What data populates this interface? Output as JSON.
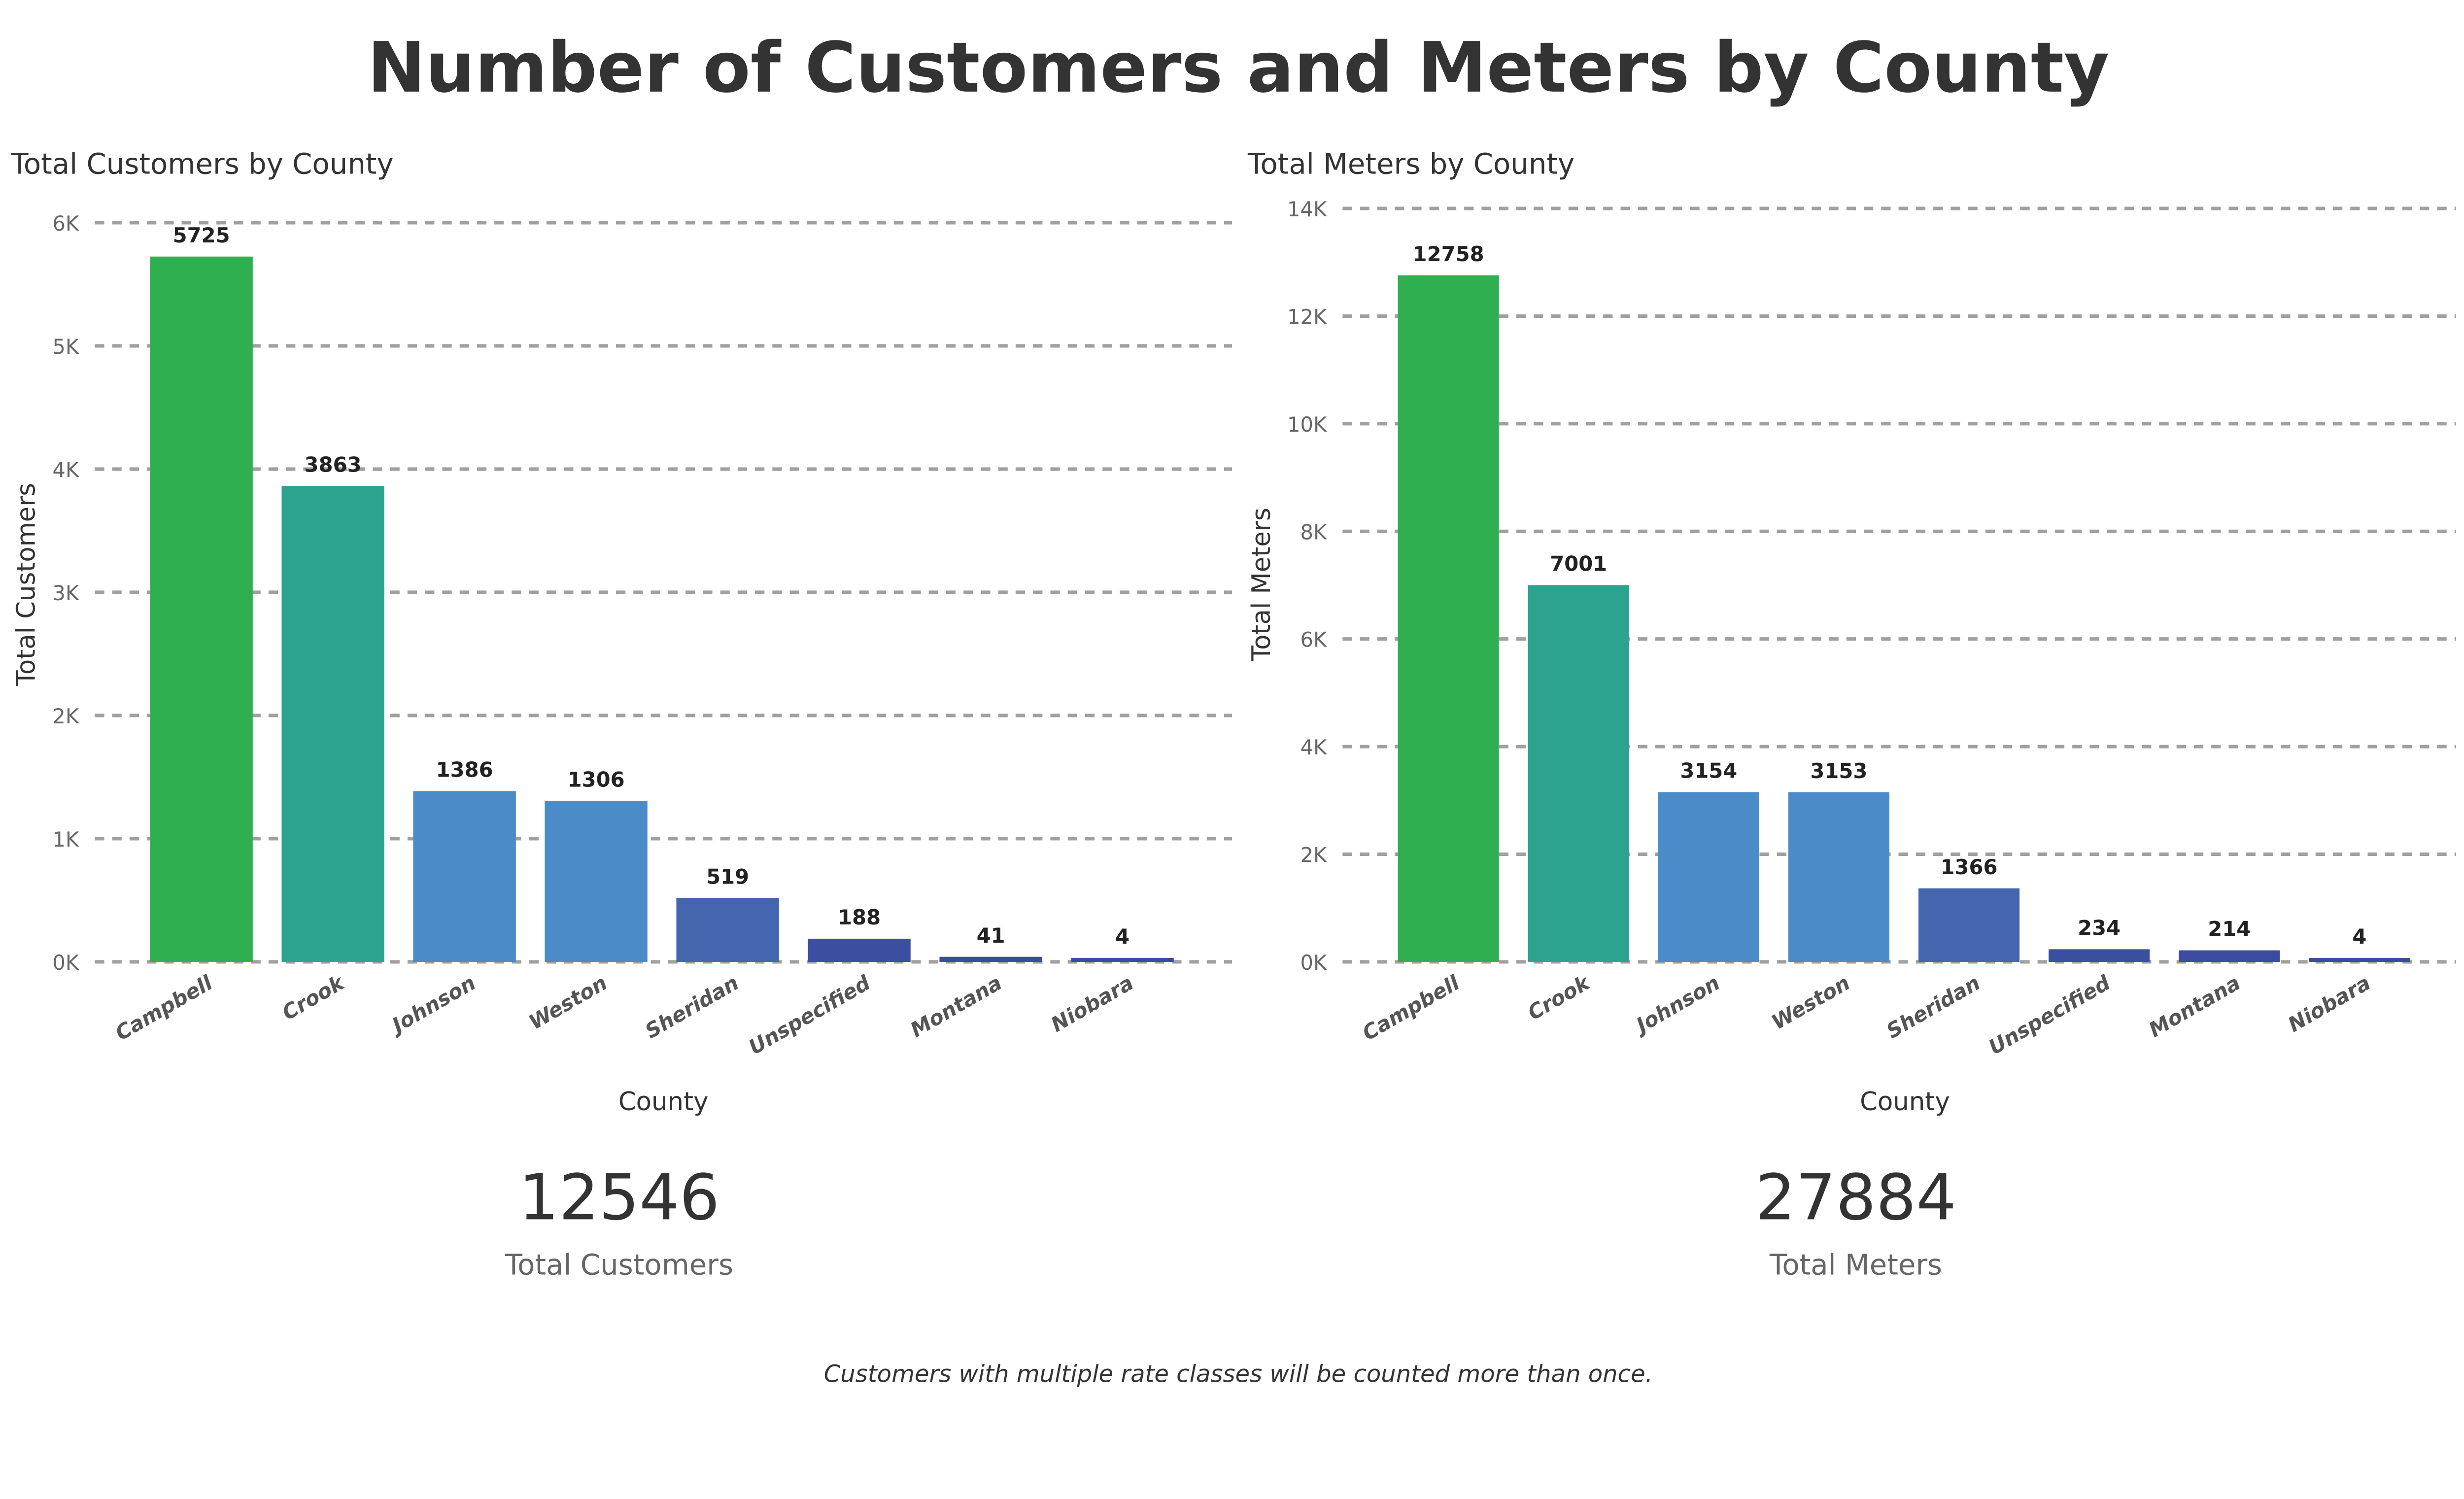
{
  "title": "Number of Customers and Meters by County",
  "footnote": "Customers with multiple rate classes will be counted more than once.",
  "kpis": [
    {
      "value": "12546",
      "label": "Total Customers"
    },
    {
      "value": "27884",
      "label": "Total Meters"
    }
  ],
  "colors": {
    "Campbell": "#2FB050",
    "Crook": "#2BA38F",
    "Johnson": "#4A8BC8",
    "Weston": "#4A8BC8",
    "Sheridan": "#4466AE",
    "Unspecified": "#3A4FA0",
    "Montana": "#3A4BA0",
    "Niobara": "#3A4BA0"
  },
  "chart_data": [
    {
      "type": "bar",
      "title": "Total Customers by County",
      "xlabel": "County",
      "ylabel": "Total Customers",
      "ylim": [
        0,
        6000
      ],
      "yticks": [
        "0K",
        "1K",
        "2K",
        "3K",
        "4K",
        "5K",
        "6K"
      ],
      "grid": true,
      "categories": [
        "Campbell",
        "Crook",
        "Johnson",
        "Weston",
        "Sheridan",
        "Unspecified",
        "Montana",
        "Niobara"
      ],
      "values": [
        5725,
        3863,
        1386,
        1306,
        519,
        188,
        41,
        4
      ]
    },
    {
      "type": "bar",
      "title": "Total Meters by County",
      "xlabel": "County",
      "ylabel": "Total Meters",
      "ylim": [
        0,
        14000
      ],
      "yticks": [
        "0K",
        "2K",
        "4K",
        "6K",
        "8K",
        "10K",
        "12K",
        "14K"
      ],
      "grid": true,
      "categories": [
        "Campbell",
        "Crook",
        "Johnson",
        "Weston",
        "Sheridan",
        "Unspecified",
        "Montana",
        "Niobara"
      ],
      "values": [
        12758,
        7001,
        3154,
        3153,
        1366,
        234,
        214,
        4
      ]
    }
  ]
}
